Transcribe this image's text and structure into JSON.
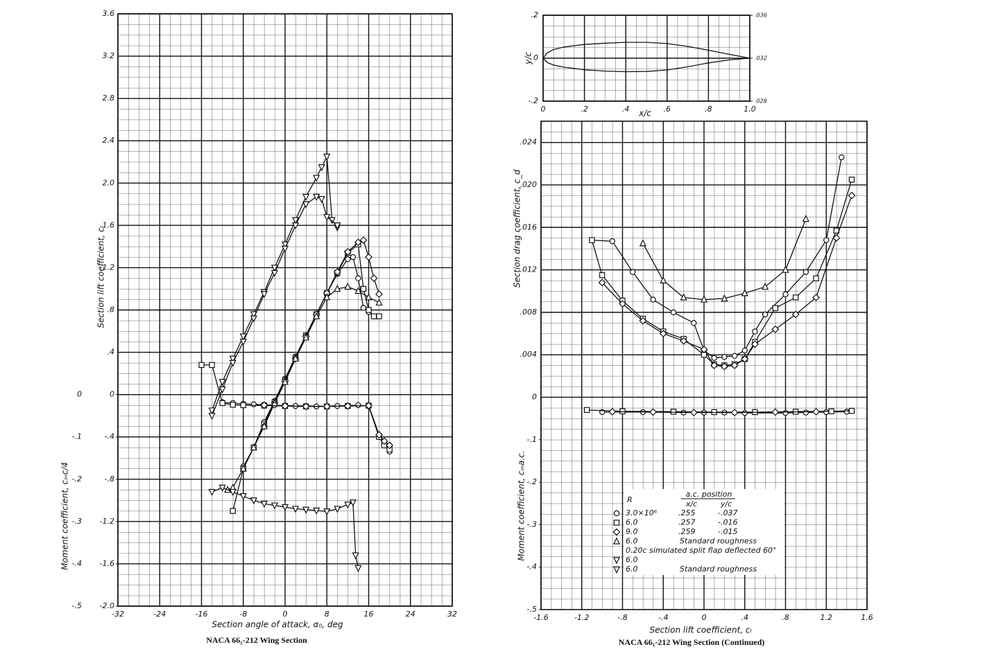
{
  "chart_data": [
    {
      "type": "line",
      "xlabel": "Section angle of attack, α₀, deg",
      "ylabel": "Section lift coefficient, cₗ",
      "y2label": "Moment coefficient, cₘc/4",
      "caption": "NACA 66₁-212 Wing Section",
      "xlim": [
        -32,
        32
      ],
      "xticks": [
        -32,
        -24,
        -16,
        -8,
        0,
        8,
        16,
        24,
        32
      ],
      "ylim": [
        -2,
        3.6
      ],
      "yticks": [
        {
          "value": -2,
          "label": "-2.0"
        },
        -1.6,
        -1.2,
        {
          "value": -0.8,
          "label": "-.8"
        },
        {
          "value": -0.4,
          "label": "-.4"
        },
        0,
        {
          "value": 0.4,
          "label": ".4"
        },
        {
          "value": 0.8,
          "label": ".8"
        },
        1.2,
        1.6,
        {
          "value": 2,
          "label": "2.0"
        },
        2.4,
        2.8,
        3.2,
        3.6
      ],
      "y2lim": [
        -0.5,
        0.9
      ],
      "y2ticks": [
        0,
        {
          "value": -0.1,
          "label": "-.1"
        },
        {
          "value": -0.2,
          "label": "-.2"
        },
        {
          "value": -0.3,
          "label": "-.3"
        },
        {
          "value": -0.4,
          "label": "-.4"
        },
        {
          "value": -0.5,
          "label": "-.5"
        }
      ],
      "grid": true,
      "color": "#111111",
      "series": [
        {
          "marker": "circle",
          "x": [
            -8,
            -6,
            -4,
            -2,
            0,
            2,
            4,
            6,
            8,
            10,
            12,
            13,
            14,
            15,
            16
          ],
          "values": [
            -0.68,
            -0.5,
            -0.26,
            -0.06,
            0.15,
            0.36,
            0.56,
            0.76,
            0.96,
            1.14,
            1.28,
            1.3,
            1.1,
            0.82,
            0.78
          ]
        },
        {
          "marker": "square",
          "x": [
            -10,
            -8,
            -6,
            -4,
            -2,
            0,
            2,
            4,
            6,
            8,
            10,
            12,
            14,
            15,
            16,
            17,
            18
          ],
          "values": [
            -1.1,
            -0.7,
            -0.5,
            -0.28,
            -0.07,
            0.14,
            0.35,
            0.56,
            0.76,
            0.96,
            1.15,
            1.34,
            1.42,
            1.0,
            0.8,
            0.74,
            0.74
          ]
        },
        {
          "marker": "diamond",
          "x": [
            -4,
            -2,
            0,
            2,
            4,
            6,
            8,
            10,
            12,
            14,
            15,
            16,
            17,
            18
          ],
          "values": [
            -0.3,
            -0.08,
            0.13,
            0.34,
            0.55,
            0.76,
            0.96,
            1.16,
            1.35,
            1.44,
            1.46,
            1.3,
            1.1,
            0.95
          ]
        },
        {
          "marker": "triangle",
          "x": [
            -11,
            -10,
            -8,
            -6,
            -4,
            -2,
            0,
            2,
            4,
            6,
            8,
            10,
            12,
            14,
            16,
            18
          ],
          "values": [
            -0.9,
            -0.88,
            -0.7,
            -0.5,
            -0.3,
            -0.08,
            0.12,
            0.34,
            0.54,
            0.74,
            0.92,
            1.0,
            1.02,
            0.98,
            0.92,
            0.87
          ]
        },
        {
          "marker": "triangle-down",
          "x": [
            -14,
            -12,
            -10,
            -8,
            -6,
            -4,
            -2,
            0,
            2,
            4,
            6,
            7,
            8,
            9,
            10
          ],
          "values": [
            -0.15,
            0.12,
            0.34,
            0.55,
            0.76,
            0.97,
            1.2,
            1.42,
            1.65,
            1.87,
            2.05,
            2.15,
            2.25,
            1.65,
            1.58
          ]
        },
        {
          "marker": "triangle-down",
          "x": [
            -14,
            -12,
            -10,
            -8,
            -6,
            -4,
            -2,
            0,
            2,
            4,
            6,
            7,
            8,
            10
          ],
          "values": [
            -0.2,
            0.05,
            0.3,
            0.5,
            0.72,
            0.95,
            1.15,
            1.38,
            1.6,
            1.8,
            1.87,
            1.85,
            1.68,
            1.6
          ]
        },
        {
          "marker": "circle",
          "axis": "y2",
          "x": [
            -12,
            -10,
            -8,
            -6,
            -4,
            -2,
            0,
            2,
            4,
            6,
            8,
            10,
            12,
            14,
            16,
            18,
            19,
            20
          ],
          "values": [
            -0.018,
            -0.02,
            -0.022,
            -0.023,
            -0.024,
            -0.025,
            -0.026,
            -0.027,
            -0.027,
            -0.028,
            -0.028,
            -0.027,
            -0.026,
            -0.025,
            -0.027,
            -0.1,
            -0.12,
            -0.135
          ]
        },
        {
          "marker": "square",
          "axis": "y2",
          "x": [
            -16,
            -14,
            -12,
            -10,
            -8,
            -4,
            0,
            4,
            8,
            12,
            16,
            18,
            19,
            20
          ],
          "values": [
            0.07,
            0.07,
            -0.02,
            -0.024,
            -0.025,
            -0.026,
            -0.027,
            -0.028,
            -0.028,
            -0.027,
            -0.026,
            -0.1,
            -0.12,
            -0.13
          ]
        },
        {
          "marker": "diamond",
          "axis": "y2",
          "x": [
            -4,
            0,
            4,
            8,
            12,
            16,
            18,
            19,
            20
          ],
          "values": [
            -0.025,
            -0.027,
            -0.028,
            -0.028,
            -0.027,
            -0.026,
            -0.095,
            -0.11,
            -0.12
          ]
        },
        {
          "marker": "triangle-down",
          "axis": "y2",
          "x": [
            -14,
            -12,
            -10,
            -8,
            -6,
            -4,
            -2,
            0,
            2,
            4,
            6,
            8,
            10,
            12,
            13,
            13.5,
            14
          ],
          "values": [
            -0.23,
            -0.22,
            -0.23,
            -0.24,
            -0.25,
            -0.258,
            -0.262,
            -0.266,
            -0.27,
            -0.272,
            -0.274,
            -0.276,
            -0.27,
            -0.26,
            -0.255,
            -0.38,
            -0.41
          ]
        }
      ]
    },
    {
      "type": "line",
      "xlabel": "x/c",
      "ylabel": "y/c",
      "xlim": [
        0,
        1
      ],
      "xticks": [
        0,
        {
          "value": 0.2,
          "label": ".2"
        },
        {
          "value": 0.4,
          "label": ".4"
        },
        {
          "value": 0.6,
          "label": ".6"
        },
        {
          "value": 0.8,
          "label": ".8"
        },
        {
          "value": 1,
          "label": "1.0"
        }
      ],
      "ylim": [
        -0.2,
        0.2
      ],
      "yticks": [
        {
          "value": -0.2,
          "label": "-.2"
        },
        0,
        {
          "value": 0.2,
          "label": ".2"
        }
      ],
      "y2lim": [
        0.028,
        0.036
      ],
      "y2ticks": [
        {
          "value": 0.028,
          "label": ".028"
        },
        {
          "value": 0.032,
          "label": ".032"
        },
        {
          "value": 0.036,
          "label": ".036"
        }
      ],
      "grid": true,
      "color": "#111111",
      "series": [
        {
          "x": [
            0,
            0.02,
            0.05,
            0.1,
            0.2,
            0.3,
            0.4,
            0.5,
            0.6,
            0.7,
            0.8,
            0.9,
            1
          ],
          "values": [
            0,
            0.025,
            0.04,
            0.052,
            0.064,
            0.07,
            0.074,
            0.074,
            0.068,
            0.055,
            0.037,
            0.018,
            0
          ]
        },
        {
          "x": [
            0,
            0.02,
            0.05,
            0.1,
            0.2,
            0.3,
            0.4,
            0.5,
            0.6,
            0.7,
            0.8,
            0.9,
            1
          ],
          "values": [
            0,
            -0.02,
            -0.032,
            -0.042,
            -0.054,
            -0.06,
            -0.063,
            -0.062,
            -0.055,
            -0.04,
            -0.022,
            -0.008,
            0
          ]
        }
      ]
    },
    {
      "type": "line",
      "xlabel": "Section lift coefficient, cₗ",
      "ylabel": "Section drag coefficient, c_d",
      "y2label": "Moment coefficient, cₘa.c.",
      "caption": "NACA 66₁-212 Wing Section (Continued)",
      "xlim": [
        -1.6,
        1.6
      ],
      "xticks": [
        -1.6,
        -1.2,
        {
          "value": -0.8,
          "label": "-.8"
        },
        {
          "value": -0.4,
          "label": "-.4"
        },
        0,
        {
          "value": 0.4,
          "label": ".4"
        },
        {
          "value": 0.8,
          "label": ".8"
        },
        1.2,
        1.6
      ],
      "ylim": [
        -0.02,
        0.026
      ],
      "yticks": [
        0,
        {
          "value": 0.004,
          "label": ".004"
        },
        {
          "value": 0.008,
          "label": ".008"
        },
        {
          "value": 0.012,
          "label": ".012"
        },
        {
          "value": 0.016,
          "label": ".016"
        },
        {
          "value": 0.02,
          "label": ".020"
        },
        {
          "value": 0.024,
          "label": ".024"
        }
      ],
      "y2lim": [
        -0.5,
        0.65
      ],
      "y2ticks": [
        {
          "value": -0.1,
          "label": "-.1"
        },
        {
          "value": -0.2,
          "label": "-.2"
        },
        {
          "value": -0.3,
          "label": "-.3"
        },
        {
          "value": -0.4,
          "label": "-.4"
        },
        {
          "value": -0.5,
          "label": "-.5"
        }
      ],
      "grid": true,
      "color": "#111111",
      "series": [
        {
          "marker": "circle",
          "x": [
            -1.1,
            -0.9,
            -0.7,
            -0.5,
            -0.3,
            -0.1,
            0,
            0.1,
            0.2,
            0.3,
            0.4,
            0.5,
            0.6,
            0.8,
            1.0,
            1.2,
            1.35
          ],
          "values": [
            0.0148,
            0.0147,
            0.0118,
            0.0092,
            0.008,
            0.007,
            0.0044,
            0.0037,
            0.0038,
            0.0039,
            0.0044,
            0.0062,
            0.0078,
            0.0097,
            0.0118,
            0.0148,
            0.0226
          ]
        },
        {
          "marker": "square",
          "x": [
            -1.1,
            -1.0,
            -0.8,
            -0.6,
            -0.4,
            -0.2,
            0,
            0.1,
            0.2,
            0.3,
            0.4,
            0.5,
            0.7,
            0.9,
            1.1,
            1.3,
            1.45
          ],
          "values": [
            0.0148,
            0.0115,
            0.0091,
            0.0074,
            0.0062,
            0.0055,
            0.004,
            0.0031,
            0.003,
            0.0031,
            0.0036,
            0.0052,
            0.0084,
            0.0094,
            0.0112,
            0.0157,
            0.0205
          ]
        },
        {
          "marker": "diamond",
          "x": [
            -1.0,
            -0.8,
            -0.6,
            -0.4,
            -0.2,
            0,
            0.1,
            0.2,
            0.3,
            0.4,
            0.5,
            0.7,
            0.9,
            1.1,
            1.3,
            1.45
          ],
          "values": [
            0.0108,
            0.0088,
            0.0072,
            0.006,
            0.0053,
            0.0045,
            0.003,
            0.0029,
            0.003,
            0.0036,
            0.005,
            0.0064,
            0.0078,
            0.0094,
            0.015,
            0.019
          ]
        },
        {
          "marker": "triangle",
          "x": [
            -0.6,
            -0.4,
            -0.2,
            0,
            0.2,
            0.4,
            0.6,
            0.8,
            1.0
          ],
          "values": [
            0.0145,
            0.011,
            0.0094,
            0.0092,
            0.0093,
            0.0098,
            0.0104,
            0.012,
            0.0168
          ]
        },
        {
          "marker": "circle",
          "axis": "y2",
          "x": [
            -1.0,
            -0.6,
            -0.2,
            0,
            0.2,
            0.4,
            0.8,
            1.0,
            1.2,
            1.4
          ],
          "values": [
            -0.035,
            -0.035,
            -0.036,
            -0.036,
            -0.036,
            -0.037,
            -0.037,
            -0.036,
            -0.035,
            -0.034
          ]
        },
        {
          "marker": "square",
          "axis": "y2",
          "x": [
            -1.15,
            -0.8,
            -0.3,
            0.1,
            0.5,
            0.9,
            1.25,
            1.45
          ],
          "values": [
            -0.03,
            -0.033,
            -0.034,
            -0.035,
            -0.035,
            -0.034,
            -0.033,
            -0.032
          ]
        },
        {
          "marker": "diamond",
          "axis": "y2",
          "x": [
            -0.9,
            -0.5,
            -0.1,
            0.3,
            0.7,
            1.1
          ],
          "values": [
            -0.034,
            -0.035,
            -0.036,
            -0.036,
            -0.035,
            -0.034
          ]
        }
      ],
      "legend": {
        "r_header": "R",
        "ac_header": "a.c. position",
        "xc_header": "x/c",
        "yc_header": "y/c",
        "flap_note": "0.20c simulated split flap deflected 60°",
        "rows": [
          {
            "marker": "circle",
            "R": "3.0×10⁶",
            "xc": ".255",
            "yc": "-.037"
          },
          {
            "marker": "square",
            "R": "6.0",
            "xc": ".257",
            "yc": "-.016"
          },
          {
            "marker": "diamond",
            "R": "9.0",
            "xc": ".259",
            "yc": "-.015"
          },
          {
            "marker": "triangle",
            "R": "6.0",
            "note": "Standard roughness"
          },
          {
            "marker": "triangle-down",
            "R": "6.0"
          },
          {
            "marker": "triangle-down",
            "R": "6.0",
            "note": "Standard roughness"
          }
        ]
      }
    }
  ]
}
